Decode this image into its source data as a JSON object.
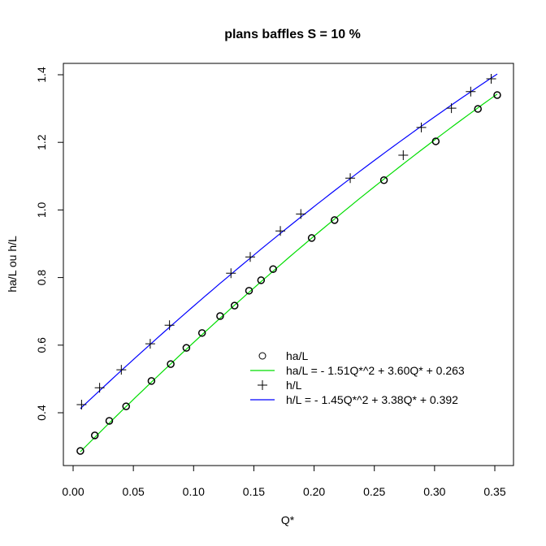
{
  "chart_data": {
    "type": "scatter",
    "title": "plans baffles S = 10 %",
    "xlabel": "Q*",
    "ylabel": "ha/L ou h/L",
    "xlim": [
      0.0,
      0.35
    ],
    "ylim": [
      0.4,
      1.4
    ],
    "xticks": [
      "0.00",
      "0.05",
      "0.10",
      "0.15",
      "0.20",
      "0.25",
      "0.30",
      "0.35"
    ],
    "yticks": [
      "0.4",
      "0.6",
      "0.8",
      "1.0",
      "1.2",
      "1.4"
    ],
    "grid": false,
    "legend_position": "inside-bottom-right",
    "series": [
      {
        "name": "ha/L",
        "marker": "circle",
        "color": "#000000",
        "points": [
          [
            0.006,
            0.287
          ],
          [
            0.018,
            0.333
          ],
          [
            0.03,
            0.376
          ],
          [
            0.044,
            0.419
          ],
          [
            0.065,
            0.494
          ],
          [
            0.081,
            0.544
          ],
          [
            0.094,
            0.592
          ],
          [
            0.107,
            0.636
          ],
          [
            0.122,
            0.686
          ],
          [
            0.134,
            0.717
          ],
          [
            0.146,
            0.761
          ],
          [
            0.156,
            0.792
          ],
          [
            0.166,
            0.825
          ],
          [
            0.198,
            0.917
          ],
          [
            0.217,
            0.97
          ],
          [
            0.258,
            1.088
          ],
          [
            0.301,
            1.203
          ],
          [
            0.336,
            1.299
          ],
          [
            0.352,
            1.34
          ]
        ]
      },
      {
        "name": "ha/L = - 1.51Q*^2 + 3.60Q* + 0.263",
        "type": "line",
        "color": "#00dd00",
        "coefficients": {
          "a": -1.51,
          "b": 3.6,
          "c": 0.263
        }
      },
      {
        "name": "h/L",
        "marker": "plus",
        "color": "#000000",
        "points": [
          [
            0.007,
            0.424
          ],
          [
            0.022,
            0.474
          ],
          [
            0.04,
            0.527
          ],
          [
            0.064,
            0.604
          ],
          [
            0.08,
            0.659
          ],
          [
            0.131,
            0.813
          ],
          [
            0.147,
            0.861
          ],
          [
            0.172,
            0.938
          ],
          [
            0.189,
            0.988
          ],
          [
            0.23,
            1.094
          ],
          [
            0.274,
            1.162
          ],
          [
            0.289,
            1.244
          ],
          [
            0.314,
            1.301
          ],
          [
            0.33,
            1.35
          ],
          [
            0.347,
            1.388
          ]
        ]
      },
      {
        "name": "h/L = - 1.45Q*^2 + 3.38Q* + 0.392",
        "type": "line",
        "color": "#0000ff",
        "coefficients": {
          "a": -1.45,
          "b": 3.38,
          "c": 0.392
        }
      }
    ]
  },
  "legend": {
    "items": [
      {
        "label": "ha/L",
        "symbol": "circle"
      },
      {
        "label": "ha/L = - 1.51Q*^2 + 3.60Q* + 0.263",
        "symbol": "line",
        "color": "#00dd00"
      },
      {
        "label": "h/L",
        "symbol": "plus"
      },
      {
        "label": "h/L = - 1.45Q*^2 + 3.38Q* + 0.392",
        "symbol": "line",
        "color": "#0000ff"
      }
    ]
  }
}
